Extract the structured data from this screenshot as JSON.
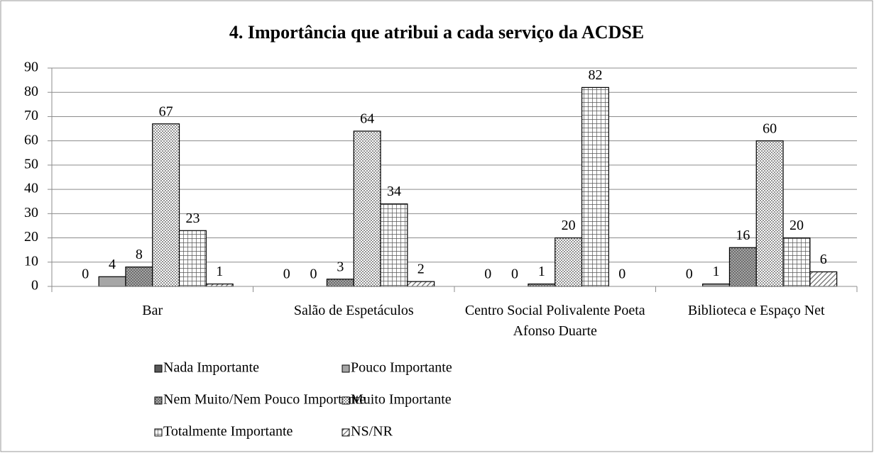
{
  "chart_data": {
    "type": "bar",
    "title": "4. Importância que atribui a cada serviço da ACDSE",
    "categories": [
      "Bar",
      "Salão de Espetáculos",
      "Centro Social Polivalente Poeta Afonso Duarte",
      "Biblioteca e Espaço Net"
    ],
    "series": [
      {
        "name": "Nada Importante",
        "color": "#595959",
        "pattern": "solid",
        "values": [
          0,
          0,
          0,
          0
        ]
      },
      {
        "name": "Pouco Importante",
        "color": "#a6a6a6",
        "pattern": "solid",
        "values": [
          4,
          0,
          0,
          1
        ]
      },
      {
        "name": "Nem Muito/Nem Pouco Importante",
        "color": "#a6a6a6",
        "pattern": "dots",
        "values": [
          8,
          3,
          1,
          16
        ]
      },
      {
        "name": "Muito Importante",
        "color": "#ffffff",
        "pattern": "dots",
        "values": [
          67,
          64,
          20,
          60
        ]
      },
      {
        "name": "Totalmente Importante",
        "color": "#ffffff",
        "pattern": "grid",
        "values": [
          23,
          34,
          82,
          20
        ]
      },
      {
        "name": "NS/NR",
        "color": "#ffffff",
        "pattern": "hatch",
        "values": [
          1,
          2,
          0,
          6
        ]
      }
    ],
    "ylim": [
      0,
      90
    ],
    "yticks": [
      0,
      10,
      20,
      30,
      40,
      50,
      60,
      70,
      80,
      90
    ],
    "grid": true,
    "legend": "bottom"
  }
}
